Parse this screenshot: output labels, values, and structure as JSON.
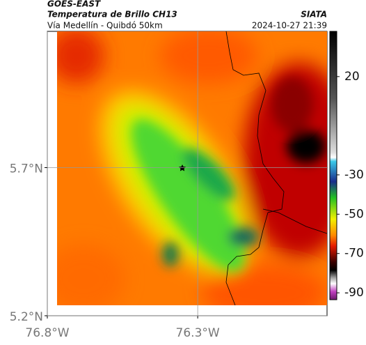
{
  "header": {
    "title": "GOES-EAST",
    "subtitle": "Temperatura de Brillo CH13",
    "region": "Vía Medellín - Quibdó 50km",
    "source": "SIATA",
    "datetime": "2024-10-27 21:39"
  },
  "chart_data": {
    "type": "map",
    "xlim": [
      -76.8,
      -75.87
    ],
    "ylim": [
      5.2,
      6.16
    ],
    "xticks": [
      {
        "value": -76.8,
        "label": "76.8°W"
      },
      {
        "value": -76.3,
        "label": "76.3°W"
      }
    ],
    "yticks": [
      {
        "value": 5.2,
        "label": "5.2°N"
      },
      {
        "value": 5.7,
        "label": "5.7°N"
      }
    ],
    "grid": true,
    "colorbar": {
      "clim": [
        -93.5,
        43
      ],
      "ticks": [
        20,
        -30,
        -50,
        -70,
        -90
      ]
    }
  }
}
